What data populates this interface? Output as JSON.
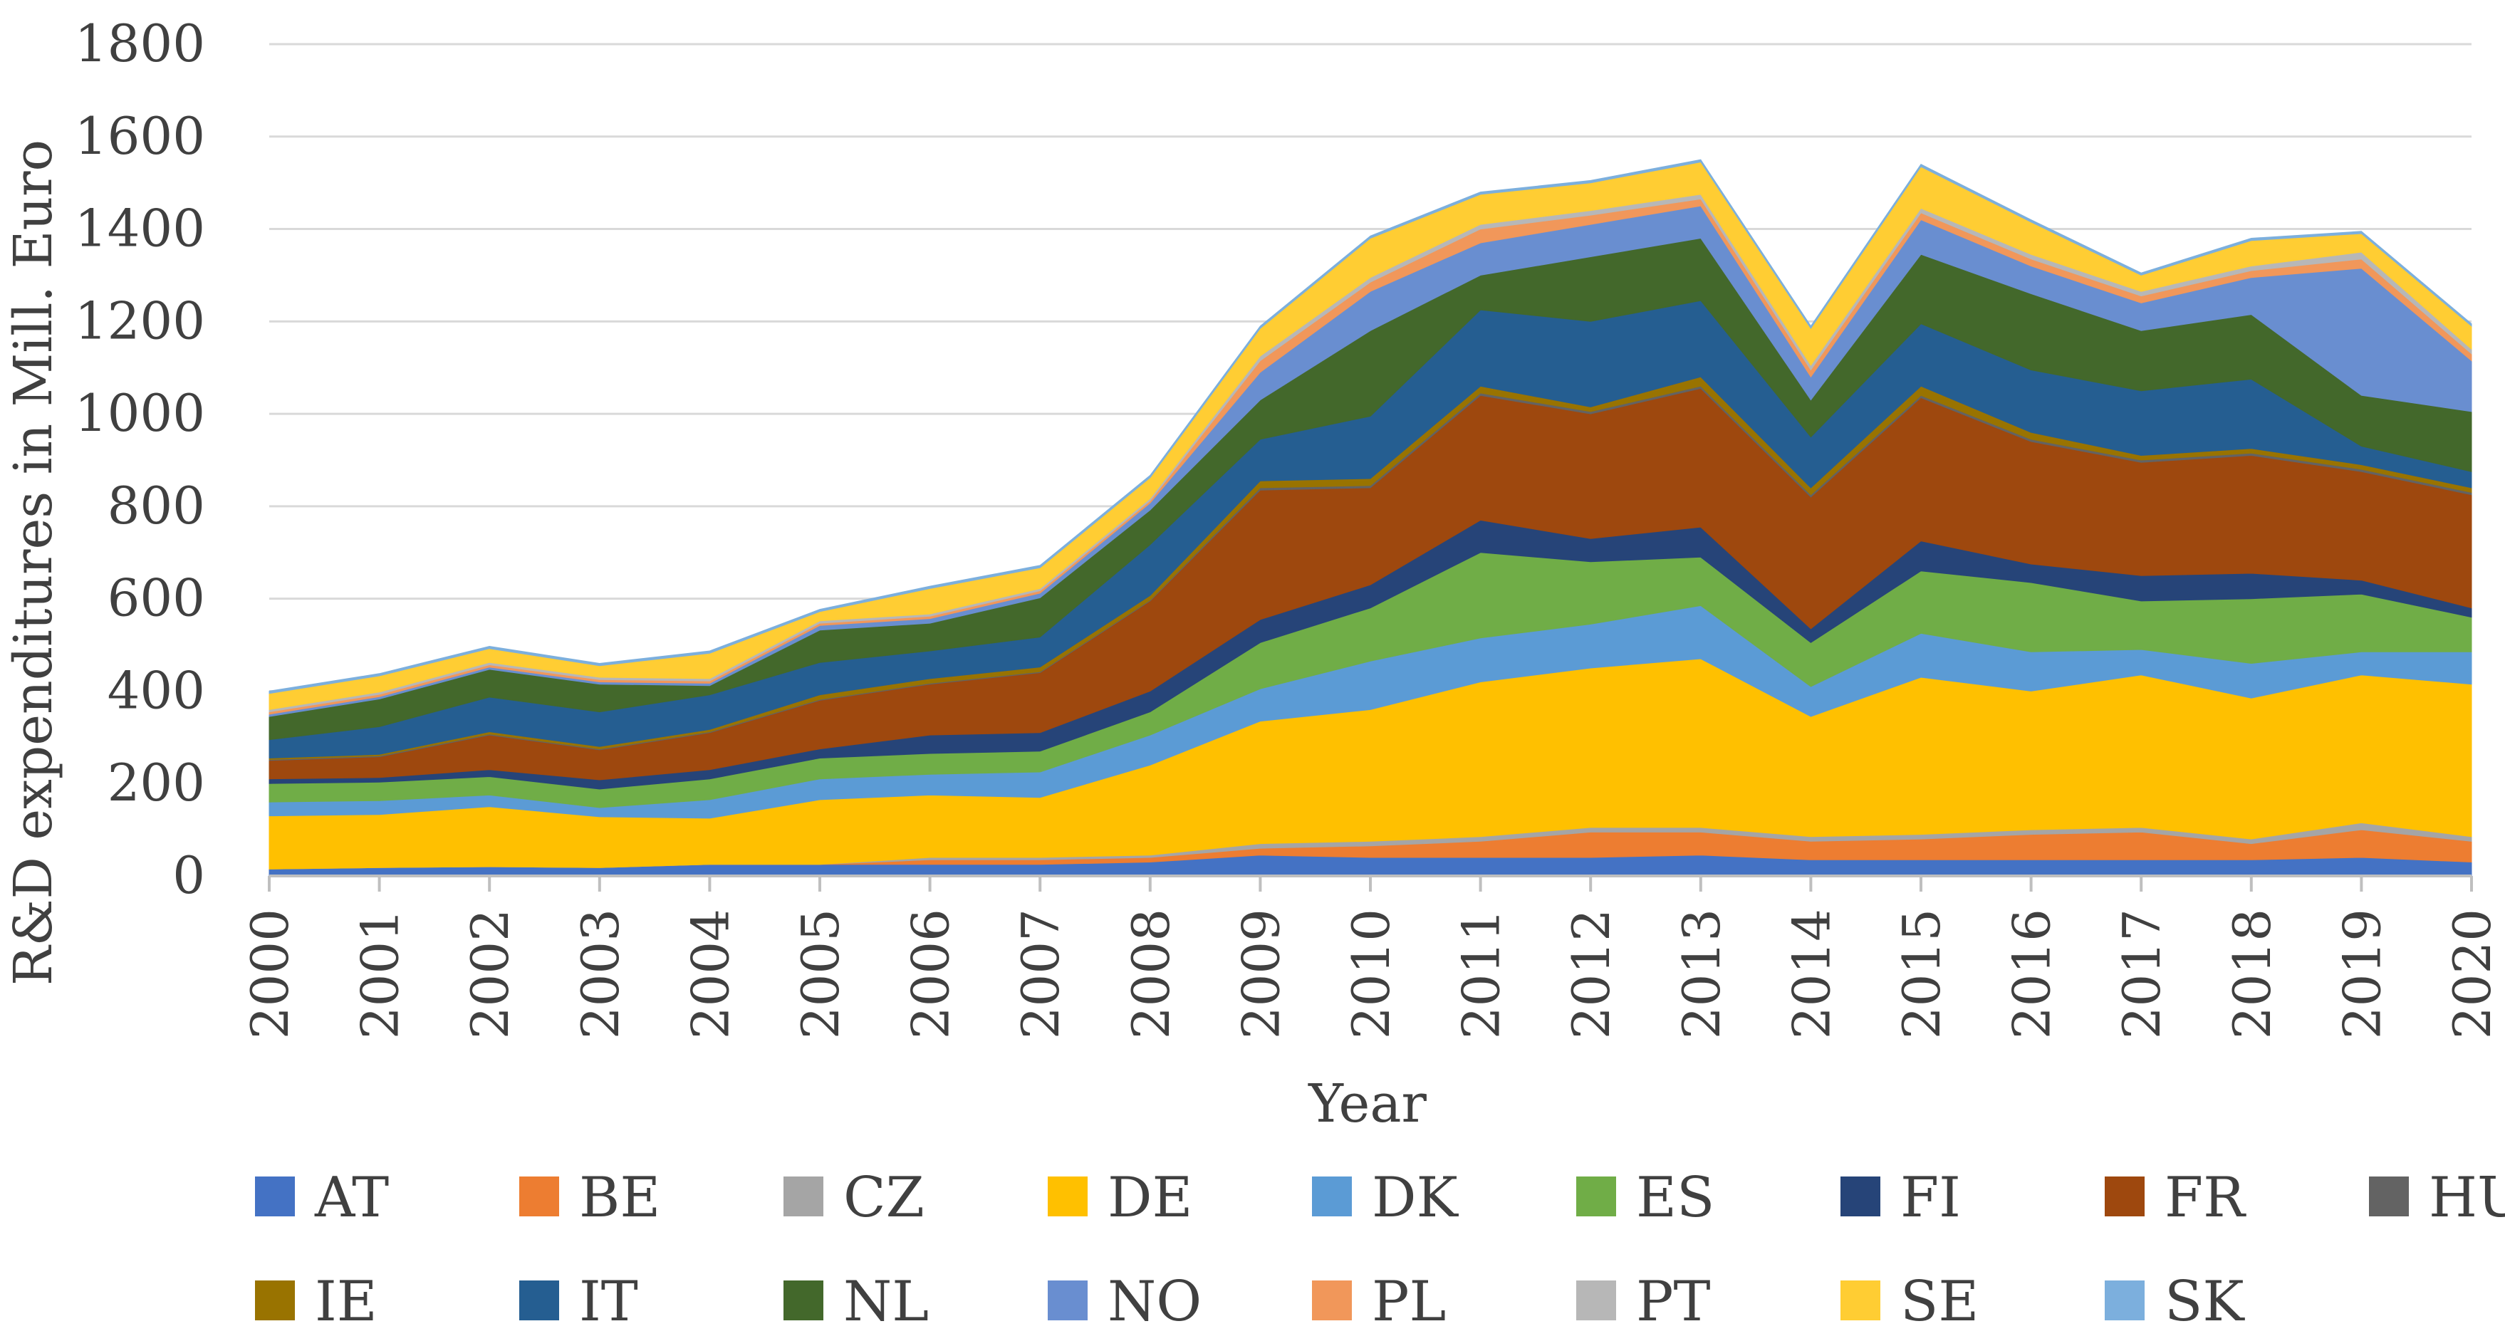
{
  "chart_data": {
    "type": "area",
    "stacked": true,
    "title": "",
    "xlabel": "Year",
    "ylabel": "R&D expenditures in Mill. Euro",
    "ylim": [
      0,
      1800
    ],
    "yticks": [
      "0",
      "200",
      "400",
      "600",
      "800",
      "1000",
      "1200",
      "1400",
      "1600",
      "1800"
    ],
    "categories": [
      "2000",
      "2001",
      "2002",
      "2003",
      "2004",
      "2005",
      "2006",
      "2007",
      "2008",
      "2009",
      "2010",
      "2011",
      "2012",
      "2013",
      "2014",
      "2015",
      "2016",
      "2017",
      "2018",
      "2019",
      "2020"
    ],
    "grid": "horizontal",
    "legend": "bottom",
    "series": [
      {
        "name": "AT",
        "color": "#4472C4",
        "values": [
          15,
          18,
          20,
          18,
          25,
          25,
          25,
          25,
          30,
          45,
          40,
          40,
          40,
          45,
          35,
          35,
          35,
          35,
          35,
          40,
          30
        ]
      },
      {
        "name": "BE",
        "color": "#ED7D31",
        "values": [
          0,
          0,
          0,
          0,
          0,
          0,
          10,
          10,
          10,
          15,
          25,
          35,
          55,
          50,
          40,
          45,
          55,
          60,
          35,
          60,
          45
        ]
      },
      {
        "name": "CZ",
        "color": "#A5A5A5",
        "values": [
          0,
          0,
          0,
          0,
          0,
          0,
          5,
          5,
          5,
          10,
          10,
          10,
          10,
          10,
          10,
          10,
          10,
          10,
          10,
          15,
          10
        ]
      },
      {
        "name": "DE",
        "color": "#FFC000",
        "values": [
          115,
          115,
          130,
          110,
          100,
          140,
          135,
          130,
          195,
          265,
          285,
          335,
          345,
          365,
          260,
          340,
          300,
          330,
          305,
          320,
          330
        ]
      },
      {
        "name": "DK",
        "color": "#5B9BD5",
        "values": [
          30,
          30,
          25,
          20,
          40,
          45,
          45,
          55,
          65,
          70,
          105,
          95,
          95,
          115,
          65,
          95,
          85,
          55,
          75,
          50,
          70
        ]
      },
      {
        "name": "ES",
        "color": "#70AD47",
        "values": [
          40,
          40,
          40,
          40,
          45,
          45,
          45,
          45,
          50,
          100,
          115,
          185,
          135,
          105,
          95,
          135,
          150,
          105,
          140,
          125,
          75
        ]
      },
      {
        "name": "FI",
        "color": "#264478",
        "values": [
          10,
          10,
          15,
          20,
          20,
          20,
          40,
          40,
          45,
          50,
          50,
          70,
          50,
          65,
          30,
          65,
          40,
          55,
          55,
          30,
          20
        ]
      },
      {
        "name": "FR",
        "color": "#9E480E",
        "values": [
          40,
          45,
          75,
          65,
          80,
          105,
          110,
          130,
          195,
          280,
          210,
          270,
          270,
          300,
          285,
          310,
          265,
          245,
          255,
          235,
          245
        ]
      },
      {
        "name": "HU",
        "color": "#636363",
        "values": [
          2,
          2,
          2,
          2,
          2,
          2,
          2,
          2,
          2,
          5,
          5,
          5,
          5,
          5,
          5,
          5,
          5,
          5,
          5,
          5,
          5
        ]
      },
      {
        "name": "IE",
        "color": "#997300",
        "values": [
          3,
          3,
          5,
          5,
          5,
          10,
          10,
          10,
          10,
          15,
          15,
          15,
          10,
          20,
          15,
          20,
          15,
          10,
          10,
          10,
          10
        ]
      },
      {
        "name": "IT",
        "color": "#255E91",
        "values": [
          40,
          60,
          75,
          75,
          75,
          70,
          60,
          65,
          110,
          90,
          135,
          165,
          185,
          165,
          110,
          135,
          135,
          140,
          150,
          40,
          35
        ]
      },
      {
        "name": "NL",
        "color": "#43682B",
        "values": [
          50,
          60,
          60,
          60,
          20,
          70,
          60,
          85,
          75,
          85,
          185,
          75,
          140,
          135,
          80,
          150,
          165,
          130,
          140,
          110,
          130
        ]
      },
      {
        "name": "NO",
        "color": "#698ED0",
        "values": [
          5,
          5,
          5,
          5,
          5,
          10,
          10,
          10,
          15,
          60,
          85,
          70,
          70,
          70,
          50,
          75,
          60,
          60,
          80,
          275,
          110
        ]
      },
      {
        "name": "PL",
        "color": "#F1975A",
        "values": [
          5,
          5,
          5,
          5,
          5,
          5,
          5,
          5,
          5,
          25,
          20,
          30,
          20,
          15,
          15,
          15,
          15,
          15,
          15,
          20,
          15
        ]
      },
      {
        "name": "PT",
        "color": "#B7B7B7",
        "values": [
          5,
          5,
          5,
          5,
          5,
          5,
          5,
          5,
          5,
          10,
          10,
          10,
          10,
          10,
          10,
          10,
          10,
          10,
          10,
          15,
          10
        ]
      },
      {
        "name": "SE",
        "color": "#FFCD33",
        "values": [
          35,
          35,
          30,
          25,
          55,
          20,
          55,
          45,
          45,
          60,
          85,
          65,
          60,
          70,
          80,
          90,
          70,
          35,
          55,
          40,
          50
        ]
      },
      {
        "name": "SK",
        "color": "#7CAFDD",
        "values": [
          5,
          5,
          5,
          5,
          5,
          5,
          5,
          5,
          5,
          5,
          5,
          5,
          5,
          5,
          5,
          5,
          5,
          5,
          5,
          5,
          5
        ]
      }
    ]
  }
}
